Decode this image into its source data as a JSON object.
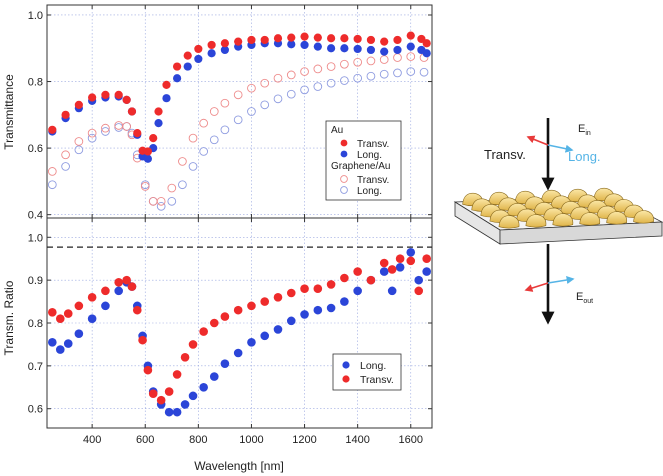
{
  "colors": {
    "red": "#ee2b2b",
    "blue": "#2b45d8",
    "light_red": "#ee8c8c",
    "light_blue": "#8f9ce0",
    "grid": "#9aa8e0",
    "axis": "#333333",
    "arrow_red": "#e83a3a",
    "arrow_blue": "#55b4e6",
    "gold": "#f0d078",
    "gold_dark": "#c9a13c"
  },
  "chart_data": [
    {
      "type": "scatter",
      "name": "transmittance",
      "xlabel": "",
      "ylabel": "Transmittance",
      "xlim": [
        230,
        1680
      ],
      "ylim": [
        0.39,
        1.03
      ],
      "xticks": [
        400,
        600,
        800,
        1000,
        1200,
        1400,
        1600
      ],
      "yticks": [
        0.4,
        0.6,
        0.8,
        1.0
      ],
      "ytick_labels": [
        "0.4",
        "0.6",
        "0.8",
        "1.0"
      ],
      "legend": {
        "position": "right",
        "groups": [
          {
            "title": "Au",
            "entries": [
              {
                "label": "Transv.",
                "series": 0
              },
              {
                "label": "Long.",
                "series": 1
              }
            ]
          },
          {
            "title": "Graphene/Au",
            "entries": [
              {
                "label": "Transv.",
                "series": 2
              },
              {
                "label": "Long.",
                "series": 3
              }
            ]
          }
        ]
      },
      "series": [
        {
          "name": "Au Transv.",
          "style": "filled",
          "color": "red",
          "x": [
            250,
            300,
            350,
            400,
            450,
            500,
            530,
            550,
            570,
            590,
            610,
            630,
            650,
            680,
            720,
            760,
            800,
            850,
            900,
            950,
            1000,
            1050,
            1100,
            1150,
            1200,
            1250,
            1300,
            1350,
            1400,
            1450,
            1500,
            1550,
            1600,
            1640,
            1660
          ],
          "y": [
            0.655,
            0.7,
            0.73,
            0.752,
            0.76,
            0.76,
            0.745,
            0.71,
            0.645,
            0.592,
            0.59,
            0.63,
            0.71,
            0.79,
            0.845,
            0.878,
            0.898,
            0.91,
            0.915,
            0.92,
            0.925,
            0.925,
            0.93,
            0.932,
            0.935,
            0.932,
            0.93,
            0.93,
            0.928,
            0.925,
            0.92,
            0.925,
            0.938,
            0.928,
            0.915
          ]
        },
        {
          "name": "Au Long.",
          "style": "filled",
          "color": "blue",
          "x": [
            250,
            300,
            350,
            400,
            450,
            500,
            530,
            550,
            570,
            590,
            610,
            630,
            650,
            680,
            720,
            760,
            800,
            850,
            900,
            950,
            1000,
            1050,
            1100,
            1150,
            1200,
            1250,
            1300,
            1350,
            1400,
            1450,
            1500,
            1550,
            1600,
            1640,
            1660
          ],
          "y": [
            0.65,
            0.69,
            0.72,
            0.742,
            0.752,
            0.755,
            0.745,
            0.71,
            0.64,
            0.575,
            0.568,
            0.6,
            0.675,
            0.75,
            0.81,
            0.845,
            0.868,
            0.885,
            0.895,
            0.905,
            0.91,
            0.915,
            0.915,
            0.912,
            0.91,
            0.905,
            0.9,
            0.9,
            0.898,
            0.895,
            0.89,
            0.895,
            0.905,
            0.895,
            0.885
          ]
        },
        {
          "name": "Graphene/Au Transv.",
          "style": "open",
          "color": "light_red",
          "x": [
            250,
            300,
            350,
            400,
            450,
            500,
            530,
            550,
            570,
            600,
            630,
            660,
            700,
            740,
            780,
            820,
            860,
            900,
            950,
            1000,
            1050,
            1100,
            1150,
            1200,
            1250,
            1300,
            1350,
            1400,
            1450,
            1500,
            1550,
            1600,
            1650
          ],
          "y": [
            0.53,
            0.58,
            0.62,
            0.645,
            0.66,
            0.668,
            0.665,
            0.64,
            0.57,
            0.485,
            0.44,
            0.44,
            0.48,
            0.56,
            0.63,
            0.675,
            0.71,
            0.735,
            0.76,
            0.78,
            0.795,
            0.81,
            0.82,
            0.83,
            0.838,
            0.845,
            0.852,
            0.858,
            0.862,
            0.866,
            0.872,
            0.875,
            0.872
          ]
        },
        {
          "name": "Graphene/Au Long.",
          "style": "open",
          "color": "light_blue",
          "x": [
            250,
            300,
            350,
            400,
            450,
            500,
            530,
            550,
            570,
            600,
            630,
            660,
            700,
            740,
            780,
            820,
            860,
            900,
            950,
            1000,
            1050,
            1100,
            1150,
            1200,
            1250,
            1300,
            1350,
            1400,
            1450,
            1500,
            1550,
            1600,
            1650
          ],
          "y": [
            0.49,
            0.545,
            0.595,
            0.63,
            0.65,
            0.662,
            0.665,
            0.645,
            0.58,
            0.49,
            0.44,
            0.425,
            0.44,
            0.49,
            0.545,
            0.59,
            0.625,
            0.655,
            0.685,
            0.71,
            0.73,
            0.748,
            0.762,
            0.775,
            0.785,
            0.795,
            0.803,
            0.81,
            0.816,
            0.822,
            0.826,
            0.83,
            0.828
          ]
        }
      ]
    },
    {
      "type": "scatter",
      "name": "ratio",
      "xlabel": "Wavelength [nm]",
      "ylabel": "Transm. Ratio",
      "xlim": [
        230,
        1680
      ],
      "ylim": [
        0.555,
        1.045
      ],
      "xticks": [
        400,
        600,
        800,
        1000,
        1200,
        1400,
        1600
      ],
      "xtick_labels": [
        "400",
        "600",
        "800",
        "1000",
        "1200",
        "1400",
        "1600"
      ],
      "yticks": [
        0.6,
        0.7,
        0.8,
        0.9,
        1.0
      ],
      "ytick_labels": [
        "0.6",
        "0.7",
        "0.8",
        "0.9",
        "1.0"
      ],
      "reference_line": 0.977,
      "legend": {
        "position": "bottom-right",
        "entries": [
          {
            "label": "Long.",
            "series": 0
          },
          {
            "label": "Transv.",
            "series": 1
          }
        ]
      },
      "series": [
        {
          "name": "Long.",
          "style": "filled",
          "color": "blue",
          "x": [
            250,
            280,
            310,
            350,
            400,
            450,
            500,
            530,
            550,
            570,
            590,
            610,
            630,
            660,
            690,
            720,
            750,
            780,
            820,
            860,
            900,
            950,
            1000,
            1050,
            1100,
            1150,
            1200,
            1250,
            1300,
            1350,
            1400,
            1450,
            1500,
            1530,
            1560,
            1600,
            1630,
            1660
          ],
          "y": [
            0.755,
            0.738,
            0.752,
            0.775,
            0.81,
            0.84,
            0.875,
            0.895,
            0.885,
            0.84,
            0.77,
            0.7,
            0.64,
            0.61,
            0.592,
            0.592,
            0.61,
            0.63,
            0.65,
            0.675,
            0.705,
            0.73,
            0.755,
            0.77,
            0.785,
            0.805,
            0.82,
            0.83,
            0.835,
            0.85,
            0.875,
            0.9,
            0.92,
            0.875,
            0.93,
            0.965,
            0.9,
            0.92
          ]
        },
        {
          "name": "Transv.",
          "style": "filled",
          "color": "red",
          "x": [
            250,
            280,
            310,
            350,
            400,
            450,
            500,
            530,
            550,
            570,
            590,
            610,
            630,
            660,
            690,
            720,
            750,
            780,
            820,
            860,
            900,
            950,
            1000,
            1050,
            1100,
            1150,
            1200,
            1250,
            1300,
            1350,
            1400,
            1450,
            1500,
            1530,
            1560,
            1600,
            1630,
            1660
          ],
          "y": [
            0.825,
            0.81,
            0.822,
            0.84,
            0.86,
            0.875,
            0.895,
            0.9,
            0.885,
            0.83,
            0.76,
            0.69,
            0.635,
            0.62,
            0.64,
            0.68,
            0.72,
            0.75,
            0.78,
            0.8,
            0.815,
            0.83,
            0.84,
            0.85,
            0.86,
            0.87,
            0.88,
            0.88,
            0.89,
            0.905,
            0.92,
            0.9,
            0.94,
            0.925,
            0.95,
            0.945,
            0.875,
            0.95
          ]
        }
      ]
    }
  ],
  "diagram": {
    "field_in_label": "E",
    "field_in_sub": "in",
    "field_out_label": "E",
    "field_out_sub": "out",
    "transverse_label": "Transv.",
    "longitudinal_label": "Long."
  }
}
